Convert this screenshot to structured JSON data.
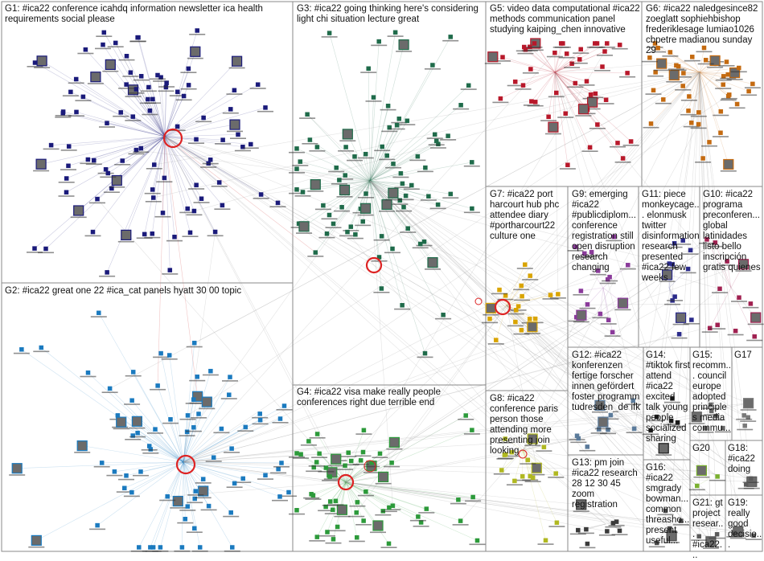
{
  "groups": [
    {
      "id": "G1",
      "label": "G1: #ica22 conference icahdq information newsletter ica health requirements social please",
      "color": "#1a1a7a"
    },
    {
      "id": "G2",
      "label": "G2: #ica22 great one 22 #ica_cat panels hyatt 30 00 topic",
      "color": "#1a7abf"
    },
    {
      "id": "G3",
      "label": "G3: #ica22 going thinking here's considering light chi situation lecture great",
      "color": "#1f6b4a"
    },
    {
      "id": "G4",
      "label": "G4: #ica22 visa make really people conferences right due terrible end",
      "color": "#2c9a3a"
    },
    {
      "id": "G5",
      "label": "G5: video data computational #ica22 methods communication panel studying kaiping_chen innovative",
      "color": "#b8182a"
    },
    {
      "id": "G6",
      "label": "G6: #ica22 naledgesince82 zoeglatt sophiehbishop frederiklesage lumiao1026 cbpetre madianou sunday 29",
      "color": "#c46a10"
    },
    {
      "id": "G7",
      "label": "G7: #ica22 port harcourt hub phc attendee diary #portharcourt22 culture one",
      "color": "#d9a400"
    },
    {
      "id": "G8",
      "label": "G8: #ica22 conference paris person those attending more presenting join looking",
      "color": "#b0b820"
    },
    {
      "id": "G9",
      "label": "G9: emerging #ica22 #publicdiplom... conference registration still open disruption research changing",
      "color": "#8a3a9a"
    },
    {
      "id": "G10",
      "label": "G10: #ica22 programa preconferen... global latinidades listo bello inscripción gratis quienes",
      "color": "#a02050"
    },
    {
      "id": "G11",
      "label": "G11: piece monkeycage... elonmusk twitter disinformation research presented #ica22 few weeks",
      "color": "#2a2a8a"
    },
    {
      "id": "G12",
      "label": "G12: #ica22 konferenzen fertige forscher innen gefördert foster programm tudresden_de ifk",
      "color": "#5a7a9a"
    },
    {
      "id": "G13",
      "label": "G13: pm join #ica22 research 28 12 30 45 zoom registration",
      "color": "#3a3a3a"
    },
    {
      "id": "G14",
      "label": "G14: #tiktok first attend #ica22 excited talk young people socialized sharing",
      "color": "#1a1a1a"
    },
    {
      "id": "G15",
      "label": "G15: recomm... council europe adopted principles media commu...",
      "color": "#666666"
    },
    {
      "id": "G16",
      "label": "G16: #ica22 smgrady bowman... common threasho... present useful...",
      "color": "#4a4a4a"
    },
    {
      "id": "G17",
      "label": "G17",
      "color": "#7a7a7a"
    },
    {
      "id": "G18",
      "label": "G18: #ica22 doing",
      "color": "#5a5a5a"
    },
    {
      "id": "G19",
      "label": "G19: really good decisio...",
      "color": "#5a5a5a"
    },
    {
      "id": "G20",
      "label": "G20",
      "color": "#7ab030"
    },
    {
      "id": "G21",
      "label": "G21: gt project resear... #ica22...",
      "color": "#5a5a5a"
    }
  ]
}
